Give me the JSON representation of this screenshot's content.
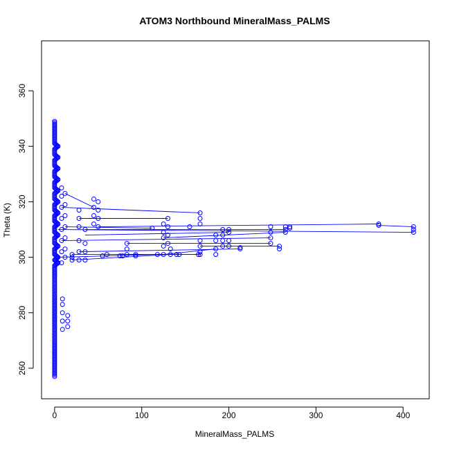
{
  "chart_data": {
    "type": "scatter",
    "title": "ATOM3 Northbound MineralMass_PALMS",
    "xlabel": "MineralMass_PALMS",
    "ylabel": "Theta (K)",
    "xlim": [
      -15,
      430
    ],
    "ylim": [
      249,
      378
    ],
    "x_ticks": [
      0,
      100,
      200,
      300,
      400
    ],
    "y_ticks": [
      260,
      280,
      300,
      320,
      340,
      360
    ],
    "grid": false,
    "legend": "none",
    "marker": "open-circle",
    "connect_points": true,
    "color": "#0000ff",
    "series": [
      {
        "values": [
          [
            0,
            349
          ],
          [
            0,
            347
          ],
          [
            0,
            345
          ],
          [
            0,
            343
          ],
          [
            0,
            341
          ],
          [
            0,
            339
          ],
          [
            0,
            337
          ],
          [
            0,
            335
          ],
          [
            0,
            333
          ],
          [
            0,
            331
          ],
          [
            0,
            329
          ],
          [
            0,
            327
          ],
          [
            0,
            325
          ],
          [
            0,
            323
          ],
          [
            0,
            321
          ],
          [
            0,
            319
          ],
          [
            0,
            317
          ],
          [
            0,
            315
          ],
          [
            0,
            313
          ],
          [
            0,
            311
          ],
          [
            0,
            309
          ],
          [
            0,
            307
          ],
          [
            0,
            305
          ],
          [
            0,
            303
          ],
          [
            0,
            301
          ],
          [
            0,
            299
          ],
          [
            0,
            297
          ],
          [
            0,
            295
          ],
          [
            0,
            293
          ],
          [
            0,
            291
          ],
          [
            0,
            289
          ],
          [
            0,
            287
          ],
          [
            0,
            285
          ],
          [
            0,
            283
          ],
          [
            0,
            281
          ],
          [
            0,
            279
          ],
          [
            0,
            277
          ],
          [
            0,
            275
          ],
          [
            0,
            273
          ],
          [
            0,
            271
          ],
          [
            0,
            269
          ],
          [
            0,
            267
          ],
          [
            0,
            265
          ],
          [
            0,
            263
          ],
          [
            0,
            261
          ],
          [
            0,
            259
          ],
          [
            0,
            257
          ],
          [
            4,
            340
          ],
          [
            4,
            336
          ],
          [
            4,
            332
          ],
          [
            4,
            328
          ],
          [
            4,
            324
          ],
          [
            4,
            320
          ],
          [
            4,
            316
          ],
          [
            4,
            312
          ],
          [
            4,
            308
          ],
          [
            4,
            304
          ],
          [
            4,
            300
          ],
          [
            4,
            298
          ],
          [
            8,
            325
          ],
          [
            8,
            322
          ],
          [
            8,
            318
          ],
          [
            8,
            314
          ],
          [
            8,
            310
          ],
          [
            8,
            306
          ],
          [
            8,
            302
          ],
          [
            8,
            298
          ],
          [
            9,
            285
          ],
          [
            9,
            283
          ],
          [
            9,
            280
          ],
          [
            9,
            277
          ],
          [
            9,
            274
          ],
          [
            12,
            323
          ],
          [
            12,
            319
          ],
          [
            12,
            315
          ],
          [
            12,
            311
          ],
          [
            12,
            307
          ],
          [
            12,
            303
          ],
          [
            12,
            300
          ],
          [
            15,
            279
          ],
          [
            15,
            277
          ],
          [
            15,
            275
          ],
          [
            20,
            301
          ],
          [
            20,
            300
          ],
          [
            20,
            299
          ],
          [
            28,
            317
          ],
          [
            28,
            314
          ],
          [
            28,
            311
          ],
          [
            28,
            306
          ],
          [
            28,
            302
          ],
          [
            28,
            299
          ],
          [
            35,
            310
          ],
          [
            35,
            305
          ],
          [
            35,
            302
          ],
          [
            35,
            299
          ],
          [
            45,
            321
          ],
          [
            45,
            318
          ],
          [
            45,
            315
          ],
          [
            45,
            312
          ],
          [
            50,
            320
          ],
          [
            50,
            317
          ],
          [
            50,
            314
          ],
          [
            50,
            311
          ],
          [
            55,
            300.5
          ],
          [
            60,
            301
          ],
          [
            75,
            300.5
          ],
          [
            78,
            300.5
          ],
          [
            83,
            305
          ],
          [
            83,
            303
          ],
          [
            83,
            301
          ],
          [
            93,
            301
          ],
          [
            93,
            300.5
          ],
          [
            112,
            310.5
          ],
          [
            118,
            301
          ],
          [
            125,
            312
          ],
          [
            125,
            309
          ],
          [
            125,
            307
          ],
          [
            125,
            304
          ],
          [
            125,
            301
          ],
          [
            130,
            314
          ],
          [
            130,
            311
          ],
          [
            130,
            308
          ],
          [
            130,
            305
          ],
          [
            133,
            303
          ],
          [
            133,
            301
          ],
          [
            140,
            301
          ],
          [
            143,
            301
          ],
          [
            155,
            311
          ],
          [
            165,
            301
          ],
          [
            167,
            316
          ],
          [
            167,
            314
          ],
          [
            167,
            312
          ],
          [
            167,
            306
          ],
          [
            167,
            304
          ],
          [
            167,
            302
          ],
          [
            167,
            301
          ],
          [
            185,
            308
          ],
          [
            185,
            306
          ],
          [
            185,
            303
          ],
          [
            185,
            301
          ],
          [
            193,
            310
          ],
          [
            193,
            308
          ],
          [
            193,
            306
          ],
          [
            193,
            304
          ],
          [
            200,
            310
          ],
          [
            200,
            309
          ],
          [
            200,
            306
          ],
          [
            200,
            304
          ],
          [
            213,
            303
          ],
          [
            213,
            303.5
          ],
          [
            248,
            311
          ],
          [
            248,
            309
          ],
          [
            248,
            307
          ],
          [
            248,
            305
          ],
          [
            258,
            304
          ],
          [
            258,
            303
          ],
          [
            265,
            311
          ],
          [
            265,
            310
          ],
          [
            265,
            309
          ],
          [
            270,
            311
          ],
          [
            270,
            310.5
          ],
          [
            372,
            312
          ],
          [
            372,
            311.5
          ],
          [
            412,
            311
          ],
          [
            412,
            310
          ],
          [
            412,
            309
          ]
        ]
      }
    ],
    "segments": [
      [
        [
          12,
          323
        ],
        [
          45,
          318
        ]
      ],
      [
        [
          8,
          318
        ],
        [
          167,
          316
        ]
      ],
      [
        [
          28,
          314
        ],
        [
          130,
          314
        ]
      ],
      [
        [
          50,
          311
        ],
        [
          372,
          312
        ]
      ],
      [
        [
          12,
          311
        ],
        [
          112,
          310.5
        ]
      ],
      [
        [
          372,
          311.5
        ],
        [
          412,
          311
        ]
      ],
      [
        [
          4,
          310
        ],
        [
          412,
          309
        ]
      ],
      [
        [
          35,
          310
        ],
        [
          265,
          310
        ]
      ],
      [
        [
          35,
          308
        ],
        [
          200,
          309
        ]
      ],
      [
        [
          8,
          306
        ],
        [
          248,
          307
        ]
      ],
      [
        [
          125,
          307
        ],
        [
          265,
          309
        ]
      ],
      [
        [
          83,
          305
        ],
        [
          248,
          305
        ]
      ],
      [
        [
          167,
          304
        ],
        [
          258,
          304
        ]
      ],
      [
        [
          28,
          302
        ],
        [
          213,
          303
        ]
      ],
      [
        [
          125,
          301
        ],
        [
          185,
          303
        ]
      ],
      [
        [
          20,
          301
        ],
        [
          143,
          301
        ]
      ],
      [
        [
          60,
          301
        ],
        [
          167,
          301
        ]
      ],
      [
        [
          4,
          300
        ],
        [
          118,
          301
        ]
      ],
      [
        [
          83,
          301
        ],
        [
          165,
          301
        ]
      ],
      [
        [
          20,
          299
        ],
        [
          133,
          301
        ]
      ]
    ]
  }
}
